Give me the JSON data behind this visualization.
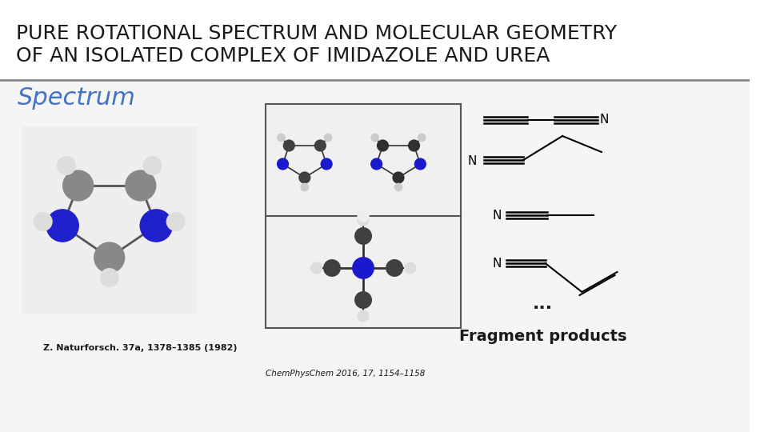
{
  "title_line1": "PURE ROTATIONAL SPECTRUM AND MOLECULAR GEOMETRY",
  "title_line2": "OF AN ISOLATED COMPLEX OF IMIDAZOLE AND UREA",
  "title_fontsize": 18,
  "title_color": "#1a1a1a",
  "title_font": "Arial",
  "section_label": "Spectrum",
  "section_color": "#4472C4",
  "section_fontsize": 22,
  "ref1": "Z. Naturforsch. 37a, 1378–1385 (1982)",
  "ref2": "ChemPhysChem 2016, 17, 1154–1158",
  "fragment_label": "Fragment products",
  "dots": "...",
  "bg_color": "#ffffff",
  "title_bg_color": "#ffffff",
  "divider_color": "#888888",
  "lower_bg_color": "#f5f5f5",
  "fragment_color": "#1a1a1a"
}
